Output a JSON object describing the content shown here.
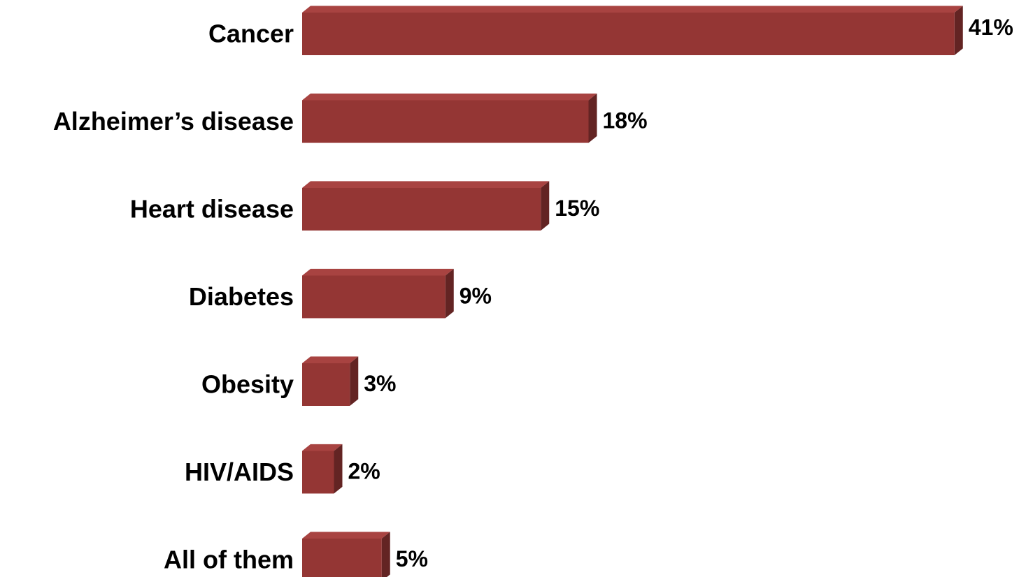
{
  "chart_data": {
    "type": "bar",
    "orientation": "horizontal",
    "style": "3d",
    "categories": [
      "Cancer",
      "Alzheimer’s disease",
      "Heart disease",
      "Diabetes",
      "Obesity",
      "HIV/AIDS",
      "All of them"
    ],
    "values": [
      41,
      18,
      15,
      9,
      3,
      2,
      5
    ],
    "value_labels": [
      "41%",
      "18%",
      "15%",
      "9%",
      "3%",
      "2%",
      "5%"
    ],
    "unit": "%",
    "grid": false,
    "legend": "none",
    "colors": {
      "bar_front": "#943634",
      "bar_top": "#a84341",
      "bar_side": "#632423"
    }
  }
}
